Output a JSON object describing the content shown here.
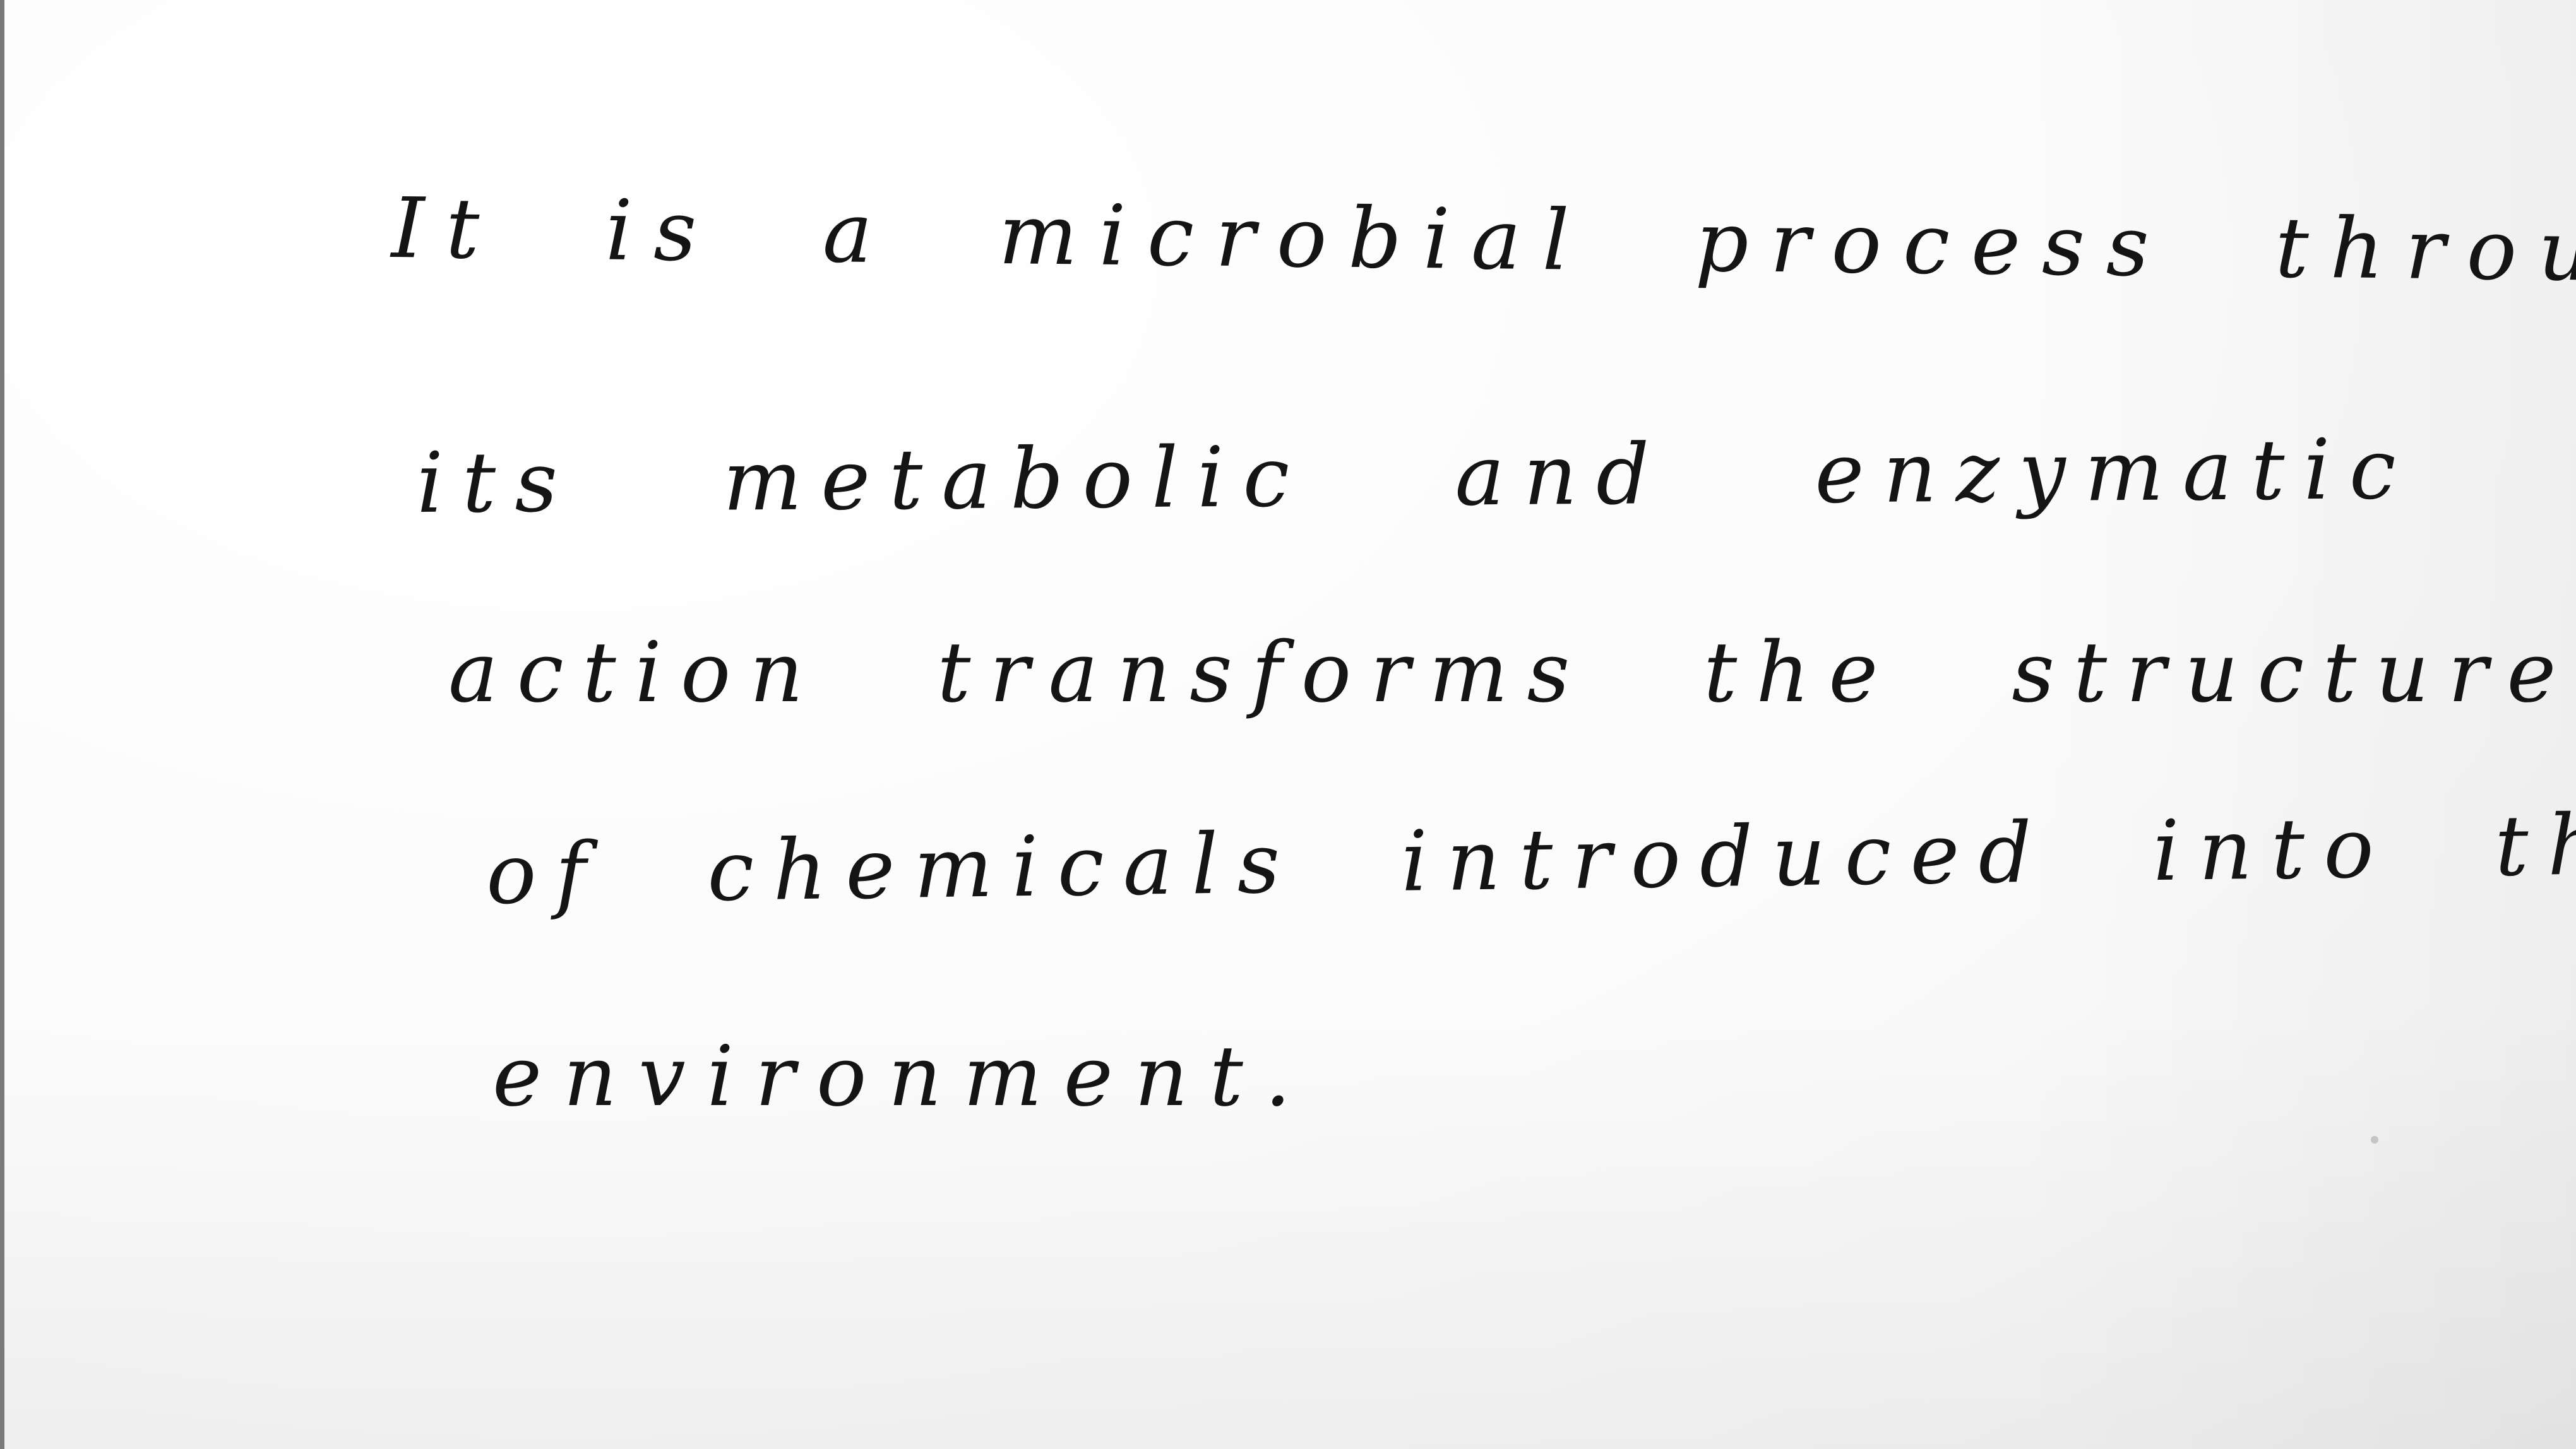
{
  "document": {
    "lines": [
      "It is a microbial process through",
      "its metabolic and enzymatic",
      "action transforms the structure",
      "of chemicals introduced into the",
      "environment."
    ]
  }
}
